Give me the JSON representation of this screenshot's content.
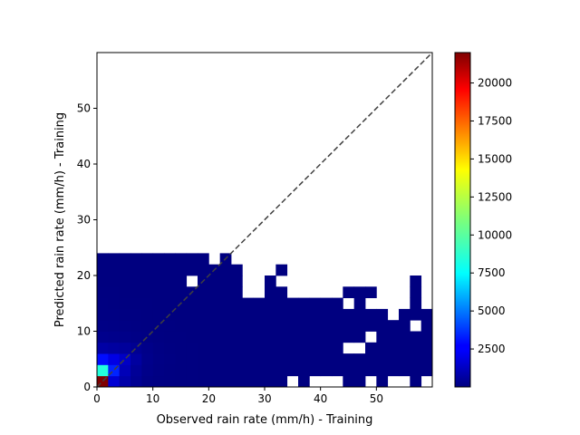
{
  "chart_data": {
    "type": "heatmap",
    "title": "",
    "xlabel": "Observed rain rate (mm/h) - Training",
    "ylabel": "Predicted rain rate (mm/h) - Training",
    "xlim": [
      0,
      60
    ],
    "ylim": [
      0,
      60
    ],
    "x_ticks": [
      0,
      10,
      20,
      30,
      40,
      50
    ],
    "y_ticks": [
      0,
      10,
      20,
      30,
      40,
      50
    ],
    "bin_size": 2,
    "colormap": "jet",
    "color_range": [
      1,
      22000
    ],
    "colorbar_ticks": [
      2500,
      5000,
      7500,
      10000,
      12500,
      15000,
      17500,
      20000
    ],
    "colorbar_tick_labels": [
      "2500",
      "5000",
      "7500",
      "10000",
      "12500",
      "15000",
      "17500",
      "20000"
    ],
    "diagonal_line": {
      "style": "dashed",
      "color": "#404040",
      "from": [
        0,
        0
      ],
      "to": [
        60,
        60
      ]
    },
    "grid": false,
    "count_rows_note": "Each row lists the approximate count per 2 mm/h observed bin (x = 0..60) for one predicted bin; 0 = empty.",
    "counts": [
      {
        "y": 0,
        "values": [
          22000,
          1800,
          900,
          400,
          150,
          80,
          60,
          40,
          30,
          20,
          15,
          12,
          8,
          6,
          5,
          3,
          2,
          0,
          2,
          0,
          0,
          0,
          1,
          1,
          0,
          1,
          0,
          0,
          1,
          0
        ]
      },
      {
        "y": 2,
        "values": [
          9000,
          3500,
          1200,
          500,
          200,
          100,
          60,
          40,
          30,
          20,
          15,
          12,
          8,
          6,
          5,
          4,
          3,
          2,
          3,
          2,
          2,
          2,
          1,
          1,
          1,
          1,
          1,
          1,
          1,
          1
        ]
      },
      {
        "y": 4,
        "values": [
          3000,
          2200,
          1500,
          700,
          250,
          120,
          70,
          40,
          30,
          20,
          15,
          12,
          8,
          6,
          5,
          4,
          3,
          2,
          2,
          2,
          2,
          2,
          1,
          1,
          1,
          1,
          1,
          1,
          1,
          1
        ]
      },
      {
        "y": 6,
        "values": [
          800,
          700,
          600,
          400,
          200,
          100,
          60,
          40,
          30,
          20,
          15,
          12,
          8,
          6,
          5,
          4,
          3,
          2,
          2,
          2,
          2,
          2,
          0,
          0,
          2,
          2,
          2,
          2,
          2,
          2
        ]
      },
      {
        "y": 8,
        "values": [
          300,
          250,
          200,
          150,
          100,
          60,
          40,
          30,
          20,
          15,
          12,
          8,
          6,
          5,
          4,
          3,
          2,
          2,
          2,
          2,
          1,
          1,
          1,
          1,
          0,
          1,
          1,
          1,
          1,
          1
        ]
      },
      {
        "y": 10,
        "values": [
          150,
          120,
          100,
          80,
          60,
          40,
          30,
          20,
          15,
          12,
          8,
          6,
          5,
          4,
          3,
          3,
          2,
          2,
          2,
          2,
          2,
          2,
          1,
          1,
          1,
          1,
          1,
          1,
          0,
          1
        ]
      },
      {
        "y": 12,
        "values": [
          80,
          70,
          60,
          50,
          40,
          30,
          20,
          15,
          12,
          8,
          6,
          5,
          4,
          3,
          3,
          2,
          2,
          2,
          2,
          2,
          2,
          2,
          1,
          1,
          1,
          1,
          0,
          1,
          1,
          1
        ]
      },
      {
        "y": 14,
        "values": [
          50,
          40,
          35,
          30,
          25,
          20,
          15,
          12,
          8,
          6,
          5,
          4,
          2,
          2,
          2,
          2,
          2,
          2,
          2,
          2,
          1,
          1,
          0,
          1,
          0,
          0,
          0,
          0,
          1,
          0
        ]
      },
      {
        "y": 16,
        "values": [
          30,
          25,
          20,
          18,
          15,
          12,
          10,
          8,
          6,
          5,
          4,
          3,
          2,
          0,
          0,
          2,
          2,
          0,
          0,
          0,
          0,
          0,
          1,
          1,
          1,
          0,
          0,
          0,
          1,
          0
        ]
      },
      {
        "y": 18,
        "values": [
          20,
          18,
          15,
          12,
          10,
          8,
          6,
          5,
          0,
          4,
          3,
          2,
          2,
          0,
          0,
          1,
          0,
          0,
          0,
          0,
          0,
          0,
          0,
          0,
          0,
          0,
          0,
          0,
          1,
          0
        ]
      },
      {
        "y": 20,
        "values": [
          15,
          12,
          10,
          8,
          6,
          5,
          4,
          3,
          3,
          2,
          2,
          2,
          2,
          0,
          0,
          0,
          1,
          0,
          0,
          0,
          0,
          0,
          0,
          0,
          0,
          0,
          0,
          0,
          0,
          0
        ]
      },
      {
        "y": 22,
        "values": [
          10,
          8,
          6,
          5,
          4,
          3,
          3,
          2,
          2,
          2,
          0,
          2,
          0,
          0,
          0,
          0,
          0,
          0,
          0,
          0,
          0,
          0,
          0,
          0,
          0,
          0,
          0,
          0,
          0,
          0
        ]
      },
      {
        "y": 24,
        "values": [
          0,
          0,
          0,
          0,
          0,
          0,
          0,
          0,
          0,
          0,
          0,
          0,
          0,
          0,
          0,
          0,
          0,
          0,
          0,
          0,
          0,
          0,
          0,
          0,
          0,
          0,
          0,
          0,
          0,
          0
        ]
      }
    ]
  }
}
